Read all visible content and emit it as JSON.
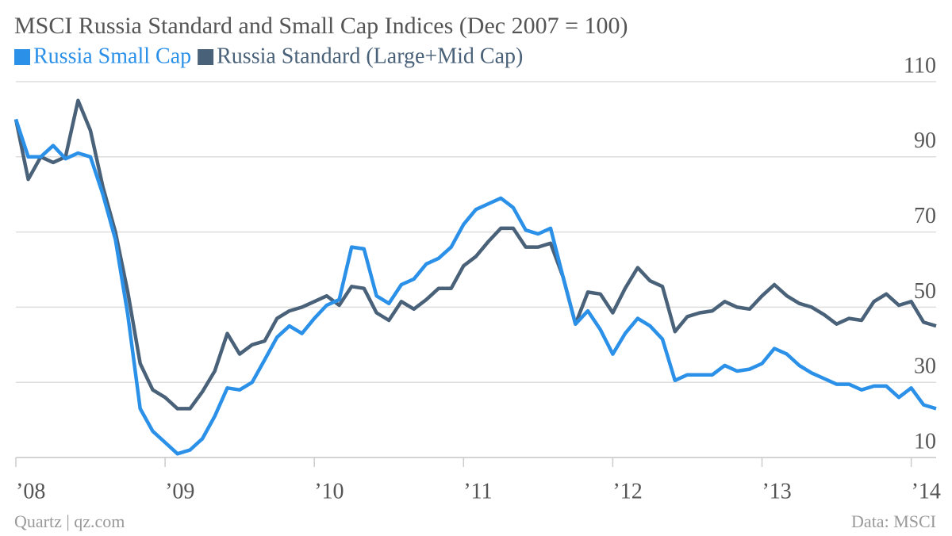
{
  "chart_data": {
    "type": "line",
    "title": "MSCI Russia Standard and Small Cap Indices (Dec 2007 = 100)",
    "credit": "Quartz | qz.com",
    "source": "Data: MSCI",
    "x": [
      2008,
      2008.083,
      2008.167,
      2008.25,
      2008.333,
      2008.417,
      2008.5,
      2008.583,
      2008.667,
      2008.75,
      2008.833,
      2008.917,
      2009,
      2009.083,
      2009.167,
      2009.25,
      2009.333,
      2009.417,
      2009.5,
      2009.583,
      2009.667,
      2009.75,
      2009.833,
      2009.917,
      2010,
      2010.083,
      2010.167,
      2010.25,
      2010.333,
      2010.417,
      2010.5,
      2010.583,
      2010.667,
      2010.75,
      2010.833,
      2010.917,
      2011,
      2011.083,
      2011.167,
      2011.25,
      2011.333,
      2011.417,
      2011.5,
      2011.583,
      2011.667,
      2011.75,
      2011.833,
      2011.917,
      2012,
      2012.083,
      2012.167,
      2012.25,
      2012.333,
      2012.417,
      2012.5,
      2012.583,
      2012.667,
      2012.75,
      2012.833,
      2012.917,
      2013,
      2013.083,
      2013.167,
      2013.25,
      2013.333,
      2013.417,
      2013.5,
      2013.583,
      2013.667,
      2013.75,
      2013.833,
      2013.917,
      2014,
      2014.083,
      2014.167
    ],
    "series": [
      {
        "name": "Russia Small Cap",
        "color": "#2b90e8",
        "values": [
          100,
          90,
          90,
          93,
          89.5,
          91,
          90,
          80,
          68,
          48,
          23,
          17,
          14,
          11,
          12,
          15,
          21,
          28.5,
          28,
          30,
          36,
          42,
          45,
          43,
          47,
          50.5,
          52,
          66,
          65.5,
          53,
          51,
          56,
          57.5,
          61.5,
          63,
          66,
          72,
          76,
          77.5,
          79,
          76.5,
          70.5,
          69.5,
          71,
          58,
          45.5,
          49,
          44,
          37.5,
          43,
          47,
          45,
          41.5,
          30.5,
          32,
          32,
          32,
          34.5,
          33,
          33.5,
          35,
          39,
          37.5,
          34.5,
          32.5,
          31,
          29.5,
          29.5,
          28,
          29,
          29,
          26,
          28.5,
          24,
          23
        ]
      },
      {
        "name": "Russia Standard (Large+Mid Cap)",
        "color": "#4a6279",
        "values": [
          100,
          84,
          90,
          88.5,
          90,
          105,
          97,
          82,
          70,
          54,
          35,
          28,
          26,
          23,
          23,
          27.5,
          33,
          43,
          37.5,
          40,
          41,
          47,
          49,
          50,
          51.5,
          53,
          50.5,
          55.5,
          55,
          48.5,
          46.5,
          51.5,
          49.5,
          52,
          55,
          55,
          61,
          63.5,
          67.5,
          71,
          71,
          66,
          66,
          67,
          58,
          45.5,
          54,
          53.5,
          48.5,
          55,
          60.5,
          57,
          55.5,
          43.5,
          47.5,
          48.5,
          49,
          51.5,
          50,
          49.5,
          53,
          56,
          53,
          51,
          50,
          48,
          45.5,
          47,
          46.5,
          51.5,
          53.5,
          50.5,
          51.5,
          46,
          45
        ]
      }
    ],
    "xlim": [
      2008,
      2014.167
    ],
    "xticks": [
      {
        "value": 2008,
        "label": "’08"
      },
      {
        "value": 2009,
        "label": "’09"
      },
      {
        "value": 2010,
        "label": "’10"
      },
      {
        "value": 2011,
        "label": "’11"
      },
      {
        "value": 2012,
        "label": "’12"
      },
      {
        "value": 2013,
        "label": "’13"
      },
      {
        "value": 2014,
        "label": "’14"
      }
    ],
    "ylim": [
      10,
      110
    ],
    "yticks": [
      10,
      30,
      50,
      70,
      90,
      110
    ],
    "grid": true
  }
}
